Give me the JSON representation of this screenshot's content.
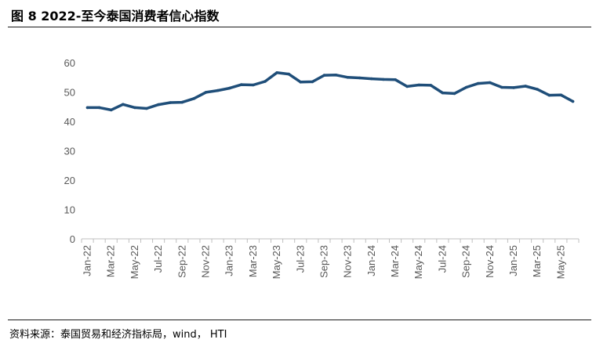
{
  "figure": {
    "title": "图 8  2022-至今泰国消费者信心指数",
    "source": "资料来源：泰国贸易和经济指标局，wind， HTI"
  },
  "colors": {
    "line": "#1f4e79",
    "axis": "#bfbfbf",
    "tick_text": "#595959"
  },
  "chart_data": {
    "type": "line",
    "title": "",
    "xlabel": "",
    "ylabel": "",
    "ylim": [
      0,
      60
    ],
    "yticks": [
      0,
      10,
      20,
      30,
      40,
      50,
      60
    ],
    "grid": false,
    "x": [
      "Jan-22",
      "Feb-22",
      "Mar-22",
      "Apr-22",
      "May-22",
      "Jun-22",
      "Jul-22",
      "Aug-22",
      "Sep-22",
      "Oct-22",
      "Nov-22",
      "Dec-22",
      "Jan-23",
      "Feb-23",
      "Mar-23",
      "Apr-23",
      "May-23",
      "Jun-23",
      "Jul-23",
      "Aug-23",
      "Sep-23",
      "Oct-23",
      "Nov-23",
      "Dec-23",
      "Jan-24",
      "Feb-24",
      "Mar-24",
      "Apr-24",
      "May-24",
      "Jun-24",
      "Jul-24",
      "Aug-24",
      "Sep-24",
      "Oct-24",
      "Nov-24",
      "Dec-24",
      "Jan-25",
      "Feb-25",
      "Mar-25",
      "Apr-25",
      "May-25",
      "Jun-25"
    ],
    "xtick_labels": [
      "Jan-22",
      "Mar-22",
      "May-22",
      "Jul-22",
      "Sep-22",
      "Nov-22",
      "Jan-23",
      "Mar-23",
      "May-23",
      "Jul-23",
      "Sep-23",
      "Nov-23",
      "Jan-24",
      "Mar-24",
      "May-24",
      "Jul-24",
      "Sep-24",
      "Nov-24",
      "Jan-25",
      "Mar-25",
      "May-25"
    ],
    "series": [
      {
        "values": [
          44.7,
          44.7,
          43.9,
          45.8,
          44.7,
          44.4,
          45.7,
          46.4,
          46.5,
          47.8,
          49.9,
          50.5,
          51.3,
          52.5,
          52.4,
          53.6,
          56.6,
          56.1,
          53.4,
          53.5,
          55.7,
          55.8,
          55.0,
          54.8,
          54.5,
          54.3,
          54.2,
          51.9,
          52.4,
          52.3,
          49.7,
          49.5,
          51.6,
          52.9,
          53.2,
          51.6,
          51.5,
          52.0,
          50.9,
          48.9,
          49.0,
          46.8
        ]
      }
    ]
  }
}
